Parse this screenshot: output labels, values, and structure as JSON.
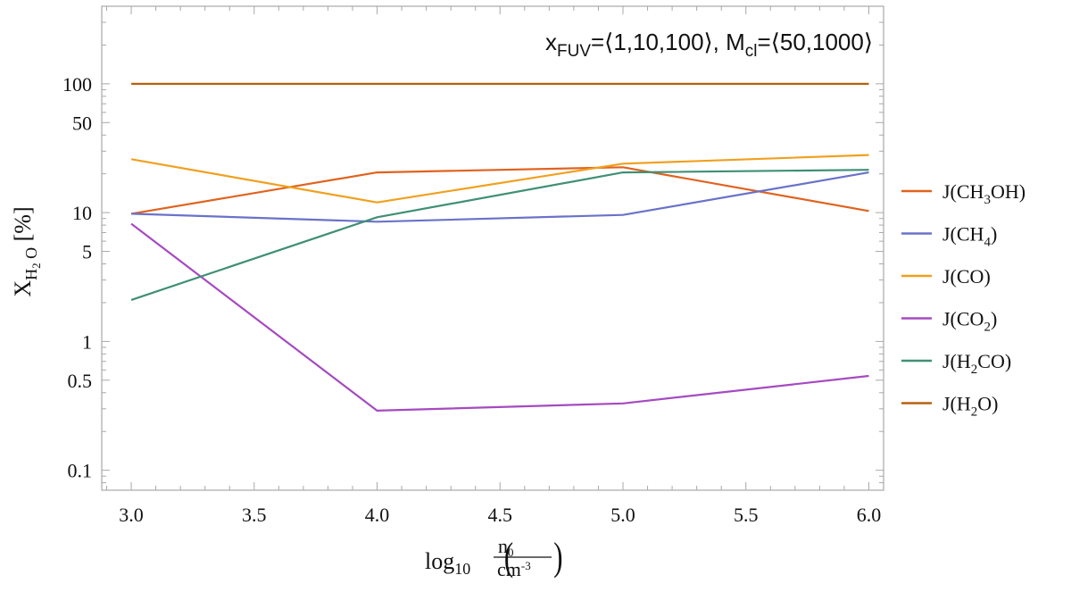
{
  "chart_data": {
    "type": "line",
    "annotation": {
      "x_main": "x",
      "x_sub": "FUV",
      "x_val": "=⟨1,10,100⟩, ",
      "m_main": "M",
      "m_sub": "cl",
      "m_val": "=⟨50,1000⟩"
    },
    "xlabel": {
      "main": "log",
      "sub": "10",
      "num": "n",
      "num_sub": "0",
      "den": "cm",
      "den_sup": "-3"
    },
    "ylabel": {
      "main": "X",
      "sub1": "H",
      "sub2": "2",
      "sub3": " O",
      "unit": " [%]"
    },
    "xlim": [
      2.88,
      6.06
    ],
    "ylim": [
      0.07,
      400
    ],
    "yscale": "log",
    "x_ticks": [
      "3.0",
      "3.5",
      "4.0",
      "4.5",
      "5.0",
      "5.5",
      "6.0"
    ],
    "y_ticks": [
      "0.1",
      "0.5",
      "1",
      "5",
      "10",
      "50",
      "100"
    ],
    "x": [
      3,
      4,
      5,
      6
    ],
    "series": [
      {
        "name": "J(CH3OH)",
        "label_pre": "J(CH",
        "label_sub": "3",
        "label_post": "OH)",
        "color": "#E1621E",
        "values": [
          9.8,
          20.5,
          22.5,
          10.3
        ]
      },
      {
        "name": "J(CH4)",
        "label_pre": "J(CH",
        "label_sub": "4",
        "label_post": ")",
        "color": "#6A72C9",
        "values": [
          9.8,
          8.5,
          9.6,
          20.5
        ]
      },
      {
        "name": "J(CO)",
        "label_pre": "J(CO)",
        "label_sub": "",
        "label_post": "",
        "color": "#F0A01E",
        "values": [
          26,
          12,
          24,
          28
        ]
      },
      {
        "name": "J(CO2)",
        "label_pre": "J(CO",
        "label_sub": "2",
        "label_post": ")",
        "color": "#A54AC0",
        "values": [
          8.2,
          0.29,
          0.33,
          0.54
        ]
      },
      {
        "name": "J(H2CO)",
        "label_pre": "J(H",
        "label_sub": "2",
        "label_post": "CO)",
        "color": "#3F8F76",
        "values": [
          2.1,
          9.2,
          20.5,
          21.5
        ]
      },
      {
        "name": "J(H2O)",
        "label_pre": "J(H",
        "label_sub": "2",
        "label_post": "O)",
        "color": "#B8610F",
        "values": [
          100,
          100,
          100,
          100
        ]
      }
    ]
  }
}
